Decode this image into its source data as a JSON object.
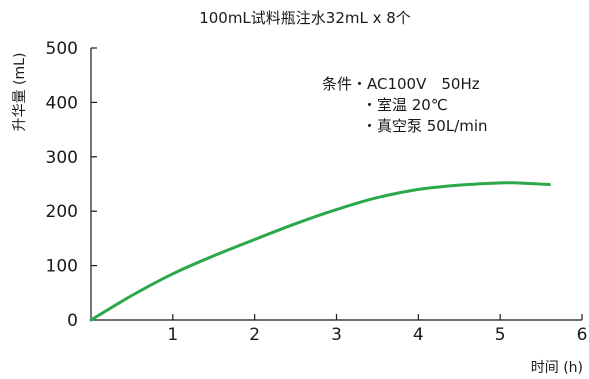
{
  "chart_data": {
    "type": "line",
    "title": "100mL试料瓶注水32mL x 8个",
    "xlabel": "时间 (h)",
    "ylabel": "升华量 (mL)",
    "xlim": [
      0,
      6
    ],
    "ylim": [
      0,
      500
    ],
    "x_ticks": [
      "1",
      "2",
      "3",
      "4",
      "5",
      "6"
    ],
    "y_ticks": [
      "0",
      "100",
      "200",
      "300",
      "400",
      "500"
    ],
    "grid": false,
    "series": [
      {
        "x": [
          0,
          0.5,
          1,
          1.5,
          2,
          2.5,
          3,
          3.5,
          4,
          4.5,
          5,
          5.2,
          5.6
        ],
        "y": [
          0,
          45,
          85,
          118,
          148,
          177,
          203,
          225,
          240,
          248,
          252,
          252,
          249
        ]
      }
    ],
    "annotations": [
      "条件・AC100V　50Hz",
      "・室温 20℃",
      "・真空泵 50L/min"
    ]
  },
  "colors": {
    "line": "#2aa84a",
    "axis": "#1a1a1a"
  }
}
